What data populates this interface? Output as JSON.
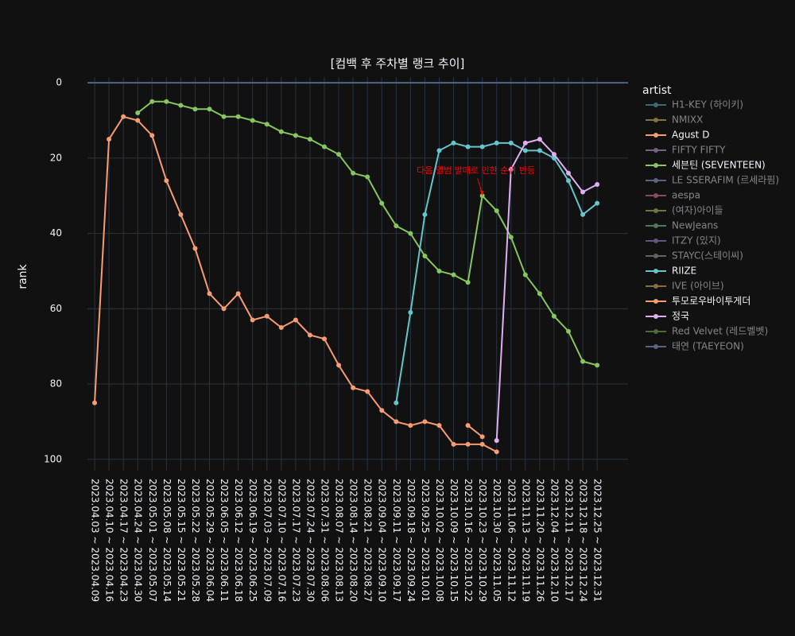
{
  "chart_data": {
    "type": "line",
    "title": "[컴백 후 주차별 랭크 추이]",
    "y_label": "rank",
    "legend_title": "artist",
    "y_reversed": true,
    "ylim": [
      -1.5,
      103
    ],
    "yticks": [
      0,
      20,
      40,
      60,
      80,
      100
    ],
    "grid": true,
    "categories": [
      "2023.04.03 ~ 2023.04.09",
      "2023.04.10 ~ 2023.04.16",
      "2023.04.17 ~ 2023.04.23",
      "2023.04.24 ~ 2023.04.30",
      "2023.05.01 ~ 2023.05.07",
      "2023.05.08 ~ 2023.05.14",
      "2023.05.15 ~ 2023.05.21",
      "2023.05.22 ~ 2023.05.28",
      "2023.05.29 ~ 2023.06.04",
      "2023.06.05 ~ 2023.06.11",
      "2023.06.12 ~ 2023.06.18",
      "2023.06.19 ~ 2023.06.25",
      "2023.07.03 ~ 2023.07.09",
      "2023.07.10 ~ 2023.07.16",
      "2023.07.17 ~ 2023.07.23",
      "2023.07.24 ~ 2023.07.30",
      "2023.07.31 ~ 2023.08.06",
      "2023.08.07 ~ 2023.08.13",
      "2023.08.14 ~ 2023.08.20",
      "2023.08.21 ~ 2023.08.27",
      "2023.09.04 ~ 2023.09.10",
      "2023.09.11 ~ 2023.09.17",
      "2023.09.18 ~ 2023.09.24",
      "2023.09.25 ~ 2023.10.01",
      "2023.10.02 ~ 2023.10.08",
      "2023.10.09 ~ 2023.10.15",
      "2023.10.16 ~ 2023.10.22",
      "2023.10.23 ~ 2023.10.29",
      "2023.10.30 ~ 2023.11.05",
      "2023.11.06 ~ 2023.11.12",
      "2023.11.13 ~ 2023.11.19",
      "2023.11.20 ~ 2023.11.26",
      "2023.12.04 ~ 2023.12.10",
      "2023.12.11 ~ 2023.12.17",
      "2023.12.18 ~ 2023.12.24",
      "2023.12.25 ~ 2023.12.31"
    ],
    "series": [
      {
        "name": "H1-KEY (하이키)",
        "color": "#66c5cc",
        "visible": "legendonly"
      },
      {
        "name": "NMIXX",
        "color": "#f6cf71",
        "visible": "legendonly"
      },
      {
        "name": "Agust D",
        "color": "#f89c74",
        "values": [
          85,
          15,
          9,
          10,
          14,
          26,
          35,
          44,
          56,
          60,
          56,
          63,
          62,
          65,
          63,
          67,
          68,
          75,
          81,
          82,
          87,
          90,
          91,
          90,
          91,
          96,
          96,
          96,
          98,
          null,
          null,
          null,
          null,
          null,
          null,
          null
        ]
      },
      {
        "name": "FIFTY FIFTY",
        "color": "#dcb0f2",
        "visible": "legendonly"
      },
      {
        "name": "세븐틴 (SEVENTEEN)",
        "color": "#87c55f",
        "values": [
          null,
          null,
          null,
          8,
          5,
          5,
          6,
          7,
          7,
          9,
          9,
          10,
          11,
          13,
          14,
          15,
          17,
          19,
          24,
          25,
          32,
          38,
          40,
          46,
          50,
          51,
          53,
          30,
          34,
          41,
          51,
          56,
          62,
          66,
          74,
          75
        ]
      },
      {
        "name": "LE SSERAFIM (르세라핌)",
        "color": "#9eb9f3",
        "visible": "legendonly"
      },
      {
        "name": "aespa",
        "color": "#fe88b1",
        "visible": "legendonly"
      },
      {
        "name": "(여자)아이들",
        "color": "#c9db74",
        "visible": "legendonly"
      },
      {
        "name": "NewJeans",
        "color": "#8be0a4",
        "visible": "legendonly"
      },
      {
        "name": "ITZY (있지)",
        "color": "#b497e7",
        "visible": "legendonly"
      },
      {
        "name": "STAYC(스테이씨)",
        "color": "#b3b3b3",
        "visible": "legendonly"
      },
      {
        "name": "RIIZE",
        "color": "#66c5cc",
        "values": [
          null,
          null,
          null,
          null,
          null,
          null,
          null,
          null,
          null,
          null,
          null,
          null,
          null,
          null,
          null,
          null,
          null,
          null,
          null,
          null,
          null,
          85,
          61,
          35,
          18,
          16,
          17,
          17,
          16,
          16,
          18,
          18,
          20,
          26,
          35,
          32
        ]
      },
      {
        "name": "IVE (아이브)",
        "color": "#f6cf71",
        "visible": "legendonly"
      },
      {
        "name": "투모로우바이투게더",
        "color": "#f89c74",
        "values": [
          null,
          null,
          null,
          null,
          null,
          null,
          null,
          null,
          null,
          null,
          null,
          null,
          null,
          null,
          null,
          null,
          null,
          null,
          null,
          null,
          null,
          null,
          null,
          null,
          null,
          null,
          91,
          94,
          null,
          null,
          null,
          null,
          null,
          null,
          null,
          null
        ]
      },
      {
        "name": "정국",
        "color": "#dcb0f2",
        "values": [
          null,
          null,
          null,
          null,
          null,
          null,
          null,
          null,
          null,
          null,
          null,
          null,
          null,
          null,
          null,
          null,
          null,
          null,
          null,
          null,
          null,
          null,
          null,
          null,
          null,
          null,
          null,
          null,
          95,
          23,
          16,
          15,
          19,
          24,
          29,
          27
        ]
      },
      {
        "name": "Red Velvet (레드벨벳)",
        "color": "#87c55f",
        "visible": "legendonly"
      },
      {
        "name": "태연 (TAEYEON)",
        "color": "#9eb9f3",
        "visible": "legendonly"
      }
    ],
    "annotations": [
      {
        "text": "다음 앨범 발매로 인한 순위 반등",
        "x": "2023.10.23 ~ 2023.10.29",
        "y": 30,
        "color": "#ff0000"
      }
    ]
  }
}
